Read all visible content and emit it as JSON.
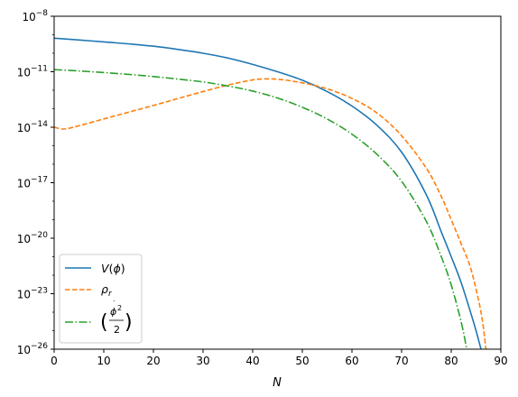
{
  "chart_data": {
    "type": "line",
    "xlabel": "N",
    "ylabel": "",
    "title": "",
    "xlim": [
      0,
      90
    ],
    "ylim": [
      1e-26,
      1e-08
    ],
    "yscale": "log",
    "grid": false,
    "legend_position": "lower-left",
    "x_ticks": [
      0,
      10,
      20,
      30,
      40,
      50,
      60,
      70,
      80,
      90
    ],
    "y_ticks": [
      {
        "exp": -26,
        "label_base": "10",
        "label_exp": "−26"
      },
      {
        "exp": -23,
        "label_base": "10",
        "label_exp": "−23"
      },
      {
        "exp": -20,
        "label_base": "10",
        "label_exp": "−20"
      },
      {
        "exp": -17,
        "label_base": "10",
        "label_exp": "−17"
      },
      {
        "exp": -14,
        "label_base": "10",
        "label_exp": "−14"
      },
      {
        "exp": -11,
        "label_base": "10",
        "label_exp": "−11"
      },
      {
        "exp": -8,
        "label_base": "10",
        "label_exp": "−8"
      }
    ],
    "series": [
      {
        "name": "V(φ)",
        "color": "#1f77b4",
        "dash": "solid",
        "x": [
          0,
          5,
          10,
          15,
          20,
          25,
          30,
          35,
          40,
          45,
          50,
          55,
          60,
          65,
          70,
          75,
          78,
          80,
          82,
          84,
          85,
          86
        ],
        "y": [
          6.5e-10,
          5.2e-10,
          4.1e-10,
          3.2e-10,
          2.4e-10,
          1.6e-10,
          1e-10,
          5.5e-11,
          2.5e-11,
          1e-11,
          3.5e-12,
          8.5e-13,
          1.4e-13,
          1.3e-14,
          4.5e-16,
          2.2e-18,
          2.2e-20,
          1e-21,
          4e-23,
          8e-25,
          1e-25,
          1e-26
        ]
      },
      {
        "name": "ρ_r",
        "color": "#ff7f0e",
        "dash": "dashed",
        "x": [
          0,
          2,
          5,
          10,
          15,
          20,
          25,
          30,
          35,
          40,
          43,
          46,
          50,
          55,
          60,
          65,
          70,
          75,
          78,
          80,
          82,
          84,
          86,
          87
        ],
        "y": [
          1e-14,
          8e-15,
          1.2e-14,
          2.8e-14,
          6.5e-14,
          1.5e-13,
          3.6e-13,
          8.5e-13,
          1.9e-12,
          3.6e-12,
          4.1e-12,
          3.7e-12,
          2.5e-12,
          1.2e-12,
          3.6e-13,
          6e-14,
          3.5e-15,
          6e-17,
          1.8e-18,
          1e-19,
          5e-21,
          2e-22,
          1e-24,
          1e-26
        ]
      },
      {
        "name": "(φ̇²/2)",
        "color": "#2ca02c",
        "dash": "dashdot",
        "x": [
          0,
          5,
          10,
          15,
          20,
          25,
          30,
          35,
          40,
          45,
          50,
          55,
          60,
          65,
          70,
          75,
          78,
          80,
          82,
          83,
          84
        ],
        "y": [
          1.3e-11,
          1.1e-11,
          9e-12,
          7.2e-12,
          5.5e-12,
          4e-12,
          2.8e-12,
          1.7e-12,
          9e-13,
          3.8e-13,
          1.2e-13,
          2.8e-14,
          4.2e-15,
          3.5e-16,
          1.2e-17,
          8e-20,
          1e-21,
          3e-23,
          3e-25,
          1.5e-26,
          5e-28
        ]
      }
    ]
  }
}
